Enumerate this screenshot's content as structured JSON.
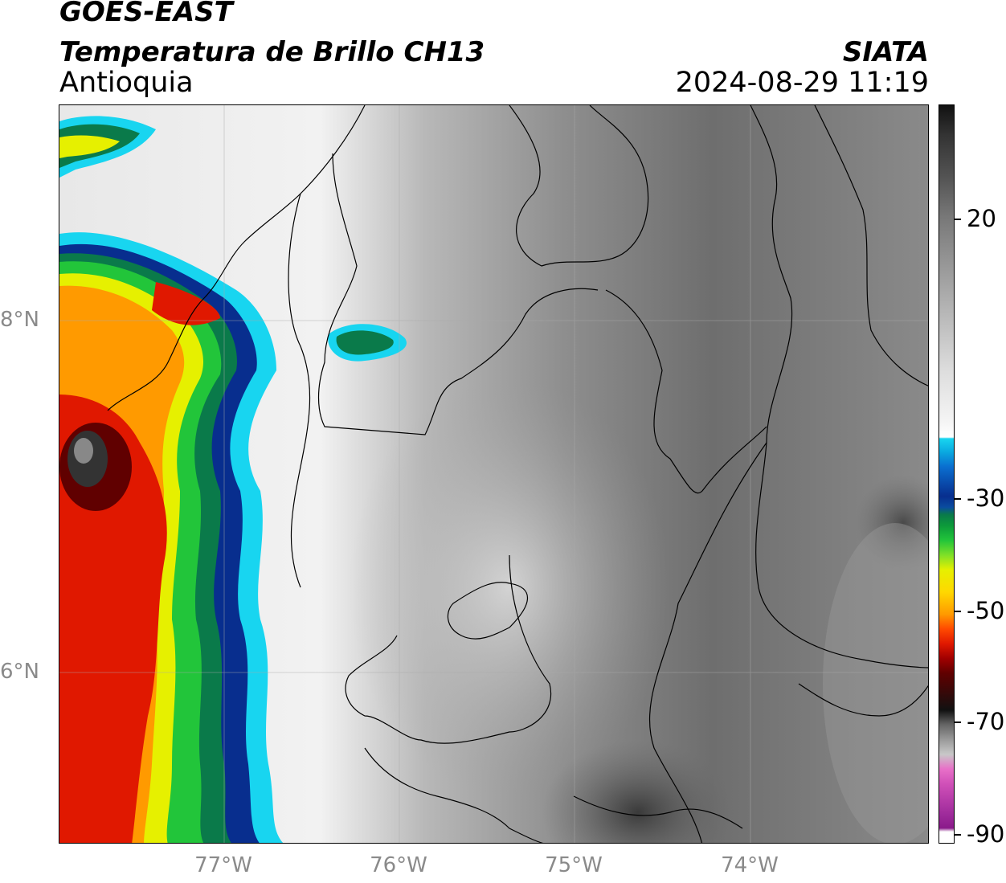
{
  "header": {
    "title_line1": "GOES-EAST",
    "title_line2": "Temperatura de Brillo CH13",
    "region": "Antioquia",
    "organization": "SIATA",
    "datetime": "2024-08-29 11:19"
  },
  "map": {
    "lat_labels": [
      "8°N",
      "6°N"
    ],
    "lon_labels": [
      "77°W",
      "76°W",
      "75°W",
      "74°W"
    ]
  },
  "colorbar": {
    "tick_labels": [
      "20",
      "-30",
      "-50",
      "-70",
      "-90"
    ]
  },
  "colors": {
    "cold_red": "#e01800",
    "green": "#22c53a",
    "blue": "#082e8e",
    "cyan": "#18d5f0",
    "yellow": "#ffd800"
  }
}
